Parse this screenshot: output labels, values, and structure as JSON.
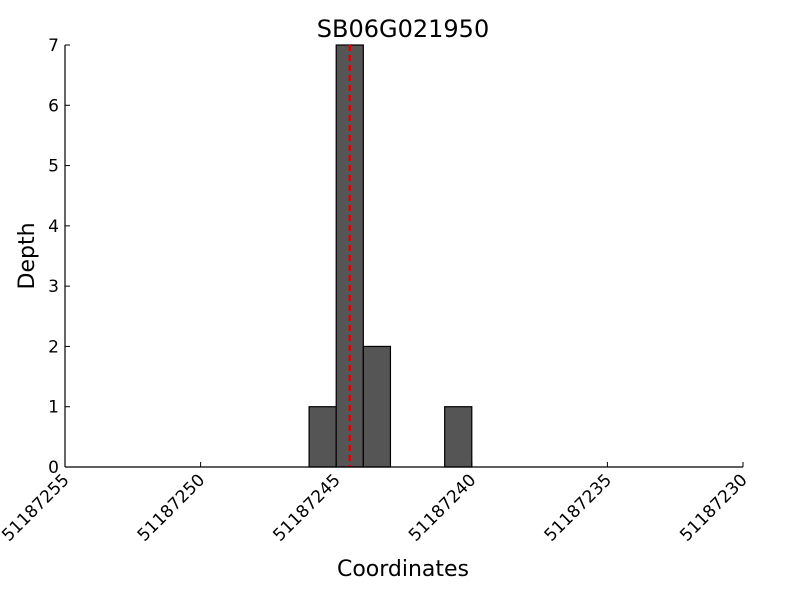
{
  "chart_data": {
    "type": "bar",
    "title": "SB06G021950",
    "x_label": "Coordinates",
    "y_label": "Depth",
    "x": [
      51187246,
      51187245,
      51187244,
      51187241
    ],
    "values": [
      1,
      7,
      2,
      1
    ],
    "color": "#555555",
    "xlim": [
      51187255,
      51187230
    ],
    "xticks": [
      51187255,
      51187250,
      51187245,
      51187240,
      51187235,
      51187230
    ],
    "ylim": [
      0,
      7
    ],
    "yticks": [
      0,
      1,
      2,
      3,
      4,
      5,
      6,
      7
    ],
    "marker_line": {
      "x": 51187244.5,
      "color": "#dd0000",
      "style": "dashed"
    }
  }
}
